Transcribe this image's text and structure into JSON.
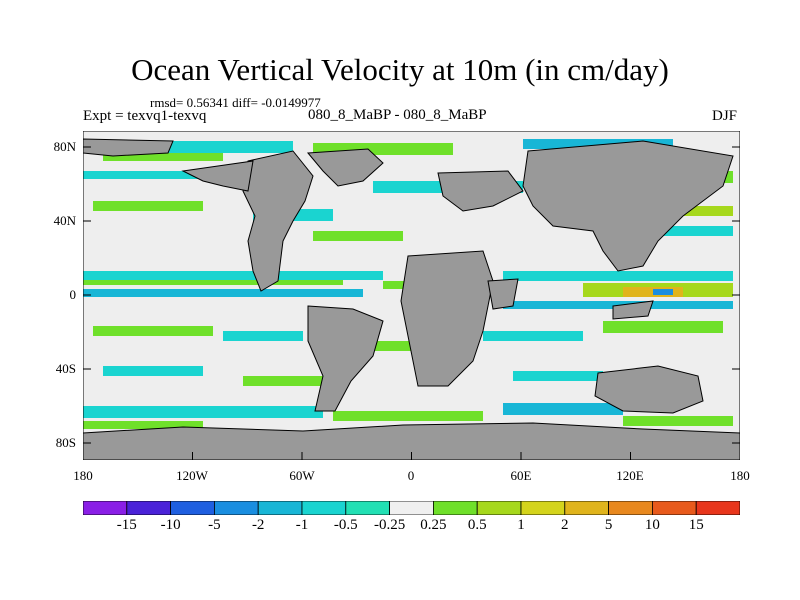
{
  "title": "Ocean Vertical Velocity at 10m (in cm/day)",
  "stats_line": "rmsd= 0.56341  diff= -0.0149977",
  "experiment": "Expt = texvq1-texvq",
  "subtitle": "080_8_MaBP - 080_8_MaBP",
  "season": "DJF",
  "y_axis_labels": [
    "80N",
    "40N",
    "0",
    "40S",
    "80S"
  ],
  "x_axis_labels": [
    "180",
    "120W",
    "60W",
    "0",
    "60E",
    "120E",
    "180"
  ],
  "colorbar": {
    "labels": [
      "-15",
      "-10",
      "-5",
      "-2",
      "-1",
      "-0.5",
      "-0.25",
      "0.25",
      "0.5",
      "1",
      "2",
      "5",
      "10",
      "15"
    ],
    "colors": [
      "#8a1fe6",
      "#4a22d8",
      "#1f5fe0",
      "#1a8ee0",
      "#18b6d6",
      "#1ad4d0",
      "#22e0b4",
      "#f0f0f0",
      "#6fe02a",
      "#a6d81c",
      "#d4d41c",
      "#e0b41c",
      "#e8881e",
      "#e85a1c",
      "#e8361c"
    ]
  },
  "palette": {
    "land": "#999999",
    "neutral": "#eeeeee"
  }
}
